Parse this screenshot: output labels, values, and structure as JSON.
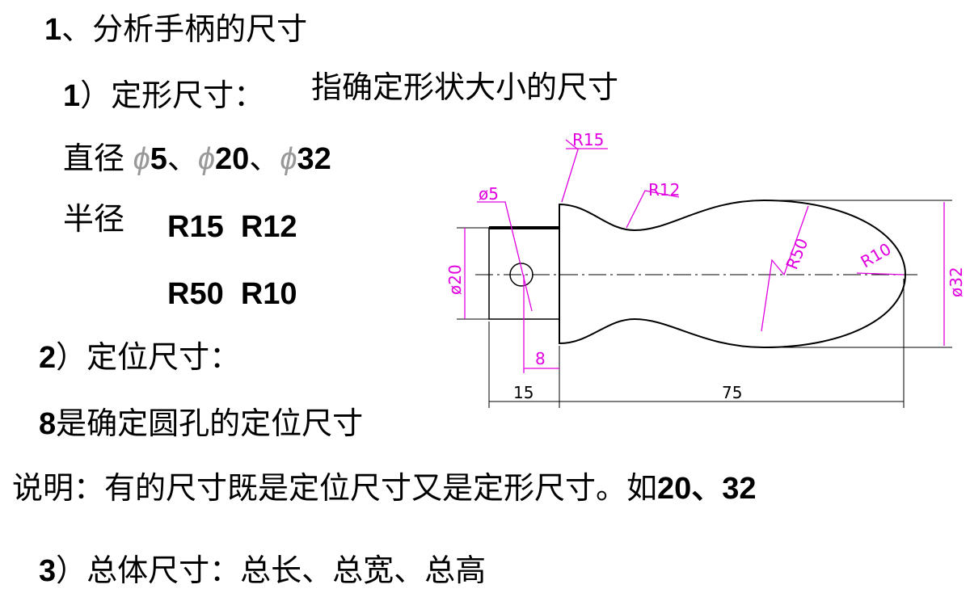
{
  "heading": {
    "number": "1",
    "text": "、分析手柄的尺寸"
  },
  "shape_dims": {
    "number": "1",
    "text": "）定形尺寸：",
    "definition": "指确定形状大小的尺寸",
    "diameter_label": "直径",
    "diameter_symbol": "ϕ",
    "separator": "、",
    "diameters": [
      "5",
      "20",
      "32"
    ],
    "radius_label": "半径",
    "radii": [
      "R15",
      "R12",
      "R50",
      "R10"
    ]
  },
  "position_dims": {
    "number": "2",
    "text": "）定位尺寸：",
    "example_number": "8",
    "example_text": "是确定圆孔的定位尺寸"
  },
  "note": {
    "text": "说明：有的尺寸既是定位尺寸又是定形尺寸。如",
    "examples": "20、32"
  },
  "overall_dims": {
    "number": "3",
    "text": "）总体尺寸：总长、总宽、总高"
  },
  "drawing": {
    "labels": {
      "r15": "R15",
      "r12": "R12",
      "d5": "ø5",
      "r50": "R50",
      "r10": "R10",
      "d20": "ø20",
      "d32": "ø32",
      "hole_pos": "8",
      "len15": "15",
      "len75": "75"
    }
  }
}
